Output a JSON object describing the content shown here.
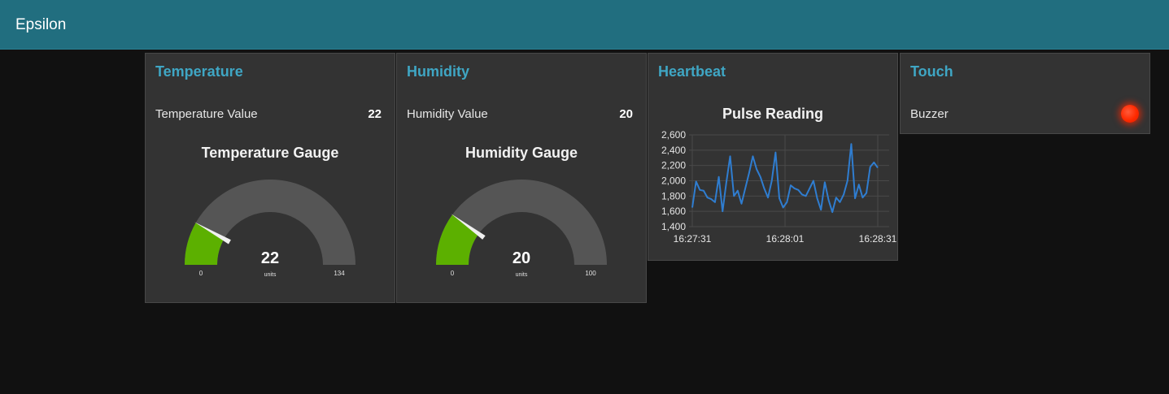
{
  "app": {
    "title": "Epsilon"
  },
  "temperature": {
    "title": "Temperature",
    "value_label": "Temperature Value",
    "value": "22",
    "gauge": {
      "title": "Temperature Gauge",
      "value": 22,
      "display": "22",
      "units": "units",
      "min": 0,
      "max": 134,
      "min_label": "0",
      "max_label": "134",
      "fill_color": "#5cb000",
      "track_color": "#555555"
    }
  },
  "humidity": {
    "title": "Humidity",
    "value_label": "Humidity Value",
    "value": "20",
    "gauge": {
      "title": "Humidity Gauge",
      "value": 20,
      "display": "20",
      "units": "units",
      "min": 0,
      "max": 100,
      "min_label": "0",
      "max_label": "100",
      "fill_color": "#5cb000",
      "track_color": "#555555"
    }
  },
  "heartbeat": {
    "title": "Heartbeat",
    "line_color": "#2f7dd0"
  },
  "touch": {
    "title": "Touch",
    "buzzer_label": "Buzzer",
    "led_color": "#ff2a00"
  },
  "chart_data": {
    "type": "line",
    "title": "Pulse Reading",
    "xlabel": "",
    "ylabel": "",
    "ylim": [
      1400,
      2600
    ],
    "y_ticks": [
      1400,
      1600,
      1800,
      2000,
      2200,
      2400,
      2600
    ],
    "y_tick_labels": [
      "1,400",
      "1,600",
      "1,800",
      "2,000",
      "2,200",
      "2,400",
      "2,600"
    ],
    "x_tick_labels": [
      "16:27:31",
      "16:28:01",
      "16:28:31"
    ],
    "grid": true,
    "series": [
      {
        "values": [
          1650,
          1990,
          1880,
          1870,
          1780,
          1760,
          1720,
          2050,
          1600,
          1980,
          2320,
          1800,
          1870,
          1700,
          1900,
          2100,
          2320,
          2150,
          2050,
          1900,
          1780,
          2000,
          2370,
          1770,
          1650,
          1720,
          1940,
          1900,
          1880,
          1820,
          1800,
          1900,
          2000,
          1770,
          1620,
          1980,
          1750,
          1590,
          1780,
          1720,
          1820,
          2000,
          2480,
          1770,
          1950,
          1780,
          1840,
          2180,
          2240,
          2170
        ]
      }
    ]
  }
}
